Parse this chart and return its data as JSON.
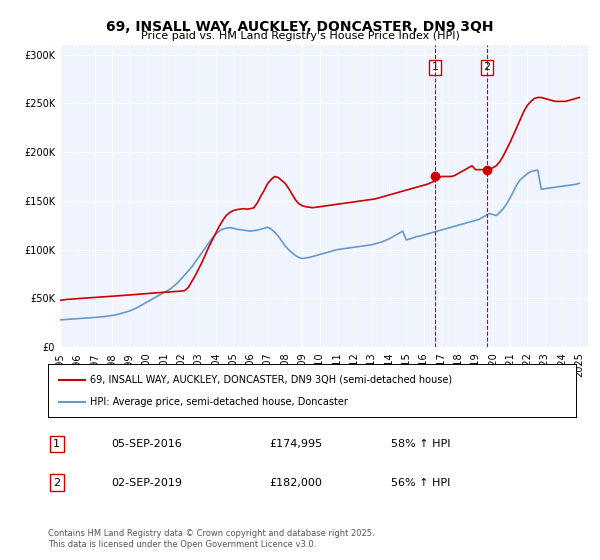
{
  "title": "69, INSALL WAY, AUCKLEY, DONCASTER, DN9 3QH",
  "subtitle": "Price paid vs. HM Land Registry's House Price Index (HPI)",
  "ylabel_ticks": [
    "£0",
    "£50K",
    "£100K",
    "£150K",
    "£200K",
    "£250K",
    "£300K"
  ],
  "ytick_values": [
    0,
    50000,
    100000,
    150000,
    200000,
    250000,
    300000
  ],
  "ylim": [
    0,
    310000
  ],
  "xlim_start": 1995.0,
  "xlim_end": 2025.5,
  "x_ticks": [
    1995,
    1996,
    1997,
    1998,
    1999,
    2000,
    2001,
    2002,
    2003,
    2004,
    2005,
    2006,
    2007,
    2008,
    2009,
    2010,
    2011,
    2012,
    2013,
    2014,
    2015,
    2016,
    2017,
    2018,
    2019,
    2020,
    2021,
    2022,
    2023,
    2024,
    2025
  ],
  "background_color": "#f0f4ff",
  "plot_bg_color": "#f0f4ff",
  "red_line_color": "#cc0000",
  "blue_line_color": "#6699cc",
  "marker_color": "#cc0000",
  "vline_color": "#cc0000",
  "legend_label_red": "69, INSALL WAY, AUCKLEY, DONCASTER, DN9 3QH (semi-detached house)",
  "legend_label_blue": "HPI: Average price, semi-detached house, Doncaster",
  "transaction1_date": "05-SEP-2016",
  "transaction1_price": "£174,995",
  "transaction1_pct": "58% ↑ HPI",
  "transaction2_date": "02-SEP-2019",
  "transaction2_price": "£182,000",
  "transaction2_pct": "56% ↑ HPI",
  "footer": "Contains HM Land Registry data © Crown copyright and database right 2025.\nThis data is licensed under the Open Government Licence v3.0.",
  "red_x": [
    1995.0,
    1995.2,
    1995.4,
    1995.6,
    1995.8,
    1996.0,
    1996.2,
    1996.4,
    1996.6,
    1996.8,
    1997.0,
    1997.2,
    1997.4,
    1997.6,
    1997.8,
    1998.0,
    1998.2,
    1998.4,
    1998.6,
    1998.8,
    1999.0,
    1999.2,
    1999.4,
    1999.6,
    1999.8,
    2000.0,
    2000.2,
    2000.4,
    2000.6,
    2000.8,
    2001.0,
    2001.2,
    2001.4,
    2001.6,
    2001.8,
    2002.0,
    2002.2,
    2002.4,
    2002.6,
    2002.8,
    2003.0,
    2003.2,
    2003.4,
    2003.6,
    2003.8,
    2004.0,
    2004.2,
    2004.4,
    2004.6,
    2004.8,
    2005.0,
    2005.2,
    2005.4,
    2005.6,
    2005.8,
    2006.0,
    2006.2,
    2006.4,
    2006.6,
    2006.8,
    2007.0,
    2007.2,
    2007.4,
    2007.6,
    2007.8,
    2008.0,
    2008.2,
    2008.4,
    2008.6,
    2008.8,
    2009.0,
    2009.2,
    2009.4,
    2009.6,
    2009.8,
    2010.0,
    2010.2,
    2010.4,
    2010.6,
    2010.8,
    2011.0,
    2011.2,
    2011.4,
    2011.6,
    2011.8,
    2012.0,
    2012.2,
    2012.4,
    2012.6,
    2012.8,
    2013.0,
    2013.2,
    2013.4,
    2013.6,
    2013.8,
    2014.0,
    2014.2,
    2014.4,
    2014.6,
    2014.8,
    2015.0,
    2015.2,
    2015.4,
    2015.6,
    2015.8,
    2016.0,
    2016.2,
    2016.4,
    2016.6,
    2016.8,
    2017.0,
    2017.2,
    2017.4,
    2017.6,
    2017.8,
    2018.0,
    2018.2,
    2018.4,
    2018.6,
    2018.8,
    2019.0,
    2019.2,
    2019.4,
    2019.6,
    2019.8,
    2020.0,
    2020.2,
    2020.4,
    2020.6,
    2020.8,
    2021.0,
    2021.2,
    2021.4,
    2021.6,
    2021.8,
    2022.0,
    2022.2,
    2022.4,
    2022.6,
    2022.8,
    2023.0,
    2023.2,
    2023.4,
    2023.6,
    2023.8,
    2024.0,
    2024.2,
    2024.4,
    2024.6,
    2024.8,
    2025.0
  ],
  "red_y": [
    48000,
    48500,
    49000,
    49200,
    49500,
    49800,
    50000,
    50200,
    50500,
    50800,
    51000,
    51200,
    51500,
    51800,
    52000,
    52200,
    52500,
    52800,
    53000,
    53200,
    53500,
    53800,
    54000,
    54500,
    54800,
    55000,
    55200,
    55500,
    55800,
    56000,
    56200,
    56500,
    56800,
    57000,
    57200,
    57500,
    58000,
    61000,
    67000,
    73000,
    80000,
    87000,
    95000,
    103000,
    110000,
    117000,
    124000,
    130000,
    135000,
    138000,
    140000,
    141000,
    141500,
    142000,
    141500,
    142000,
    143000,
    148000,
    155000,
    161000,
    168000,
    172000,
    175000,
    174000,
    171000,
    168000,
    163000,
    157000,
    151000,
    147000,
    145000,
    144000,
    143500,
    143000,
    143500,
    144000,
    144500,
    145000,
    145500,
    146000,
    146500,
    147000,
    147500,
    148000,
    148500,
    149000,
    149500,
    150000,
    150500,
    151000,
    151500,
    152000,
    153000,
    154000,
    155000,
    156000,
    157000,
    158000,
    159000,
    160000,
    161000,
    162000,
    163000,
    164000,
    165000,
    166000,
    167000,
    168500,
    170000,
    171500,
    174995,
    174995,
    174995,
    175000,
    176000,
    178000,
    180000,
    182000,
    184000,
    186000,
    182000,
    182000,
    182000,
    182000,
    182000,
    184000,
    186000,
    190000,
    196000,
    203000,
    210000,
    218000,
    226000,
    234000,
    242000,
    248000,
    252000,
    255000,
    256000,
    256000,
    255000,
    254000,
    253000,
    252000,
    252000,
    252000,
    252000,
    253000,
    254000,
    255000,
    256000
  ],
  "blue_x": [
    1995.0,
    1995.2,
    1995.4,
    1995.6,
    1995.8,
    1996.0,
    1996.2,
    1996.4,
    1996.6,
    1996.8,
    1997.0,
    1997.2,
    1997.4,
    1997.6,
    1997.8,
    1998.0,
    1998.2,
    1998.4,
    1998.6,
    1998.8,
    1999.0,
    1999.2,
    1999.4,
    1999.6,
    1999.8,
    2000.0,
    2000.2,
    2000.4,
    2000.6,
    2000.8,
    2001.0,
    2001.2,
    2001.4,
    2001.6,
    2001.8,
    2002.0,
    2002.2,
    2002.4,
    2002.6,
    2002.8,
    2003.0,
    2003.2,
    2003.4,
    2003.6,
    2003.8,
    2004.0,
    2004.2,
    2004.4,
    2004.6,
    2004.8,
    2005.0,
    2005.2,
    2005.4,
    2005.6,
    2005.8,
    2006.0,
    2006.2,
    2006.4,
    2006.6,
    2006.8,
    2007.0,
    2007.2,
    2007.4,
    2007.6,
    2007.8,
    2008.0,
    2008.2,
    2008.4,
    2008.6,
    2008.8,
    2009.0,
    2009.2,
    2009.4,
    2009.6,
    2009.8,
    2010.0,
    2010.2,
    2010.4,
    2010.6,
    2010.8,
    2011.0,
    2011.2,
    2011.4,
    2011.6,
    2011.8,
    2012.0,
    2012.2,
    2012.4,
    2012.6,
    2012.8,
    2013.0,
    2013.2,
    2013.4,
    2013.6,
    2013.8,
    2014.0,
    2014.2,
    2014.4,
    2014.6,
    2014.8,
    2015.0,
    2015.2,
    2015.4,
    2015.6,
    2015.8,
    2016.0,
    2016.2,
    2016.4,
    2016.6,
    2016.8,
    2017.0,
    2017.2,
    2017.4,
    2017.6,
    2017.8,
    2018.0,
    2018.2,
    2018.4,
    2018.6,
    2018.8,
    2019.0,
    2019.2,
    2019.4,
    2019.6,
    2019.8,
    2020.0,
    2020.2,
    2020.4,
    2020.6,
    2020.8,
    2021.0,
    2021.2,
    2021.4,
    2021.6,
    2021.8,
    2022.0,
    2022.2,
    2022.4,
    2022.6,
    2022.8,
    2023.0,
    2023.2,
    2023.4,
    2023.6,
    2023.8,
    2024.0,
    2024.2,
    2024.4,
    2024.6,
    2024.8,
    2025.0
  ],
  "blue_y": [
    28000,
    28200,
    28500,
    28800,
    29000,
    29200,
    29500,
    29800,
    30000,
    30200,
    30500,
    30800,
    31000,
    31500,
    32000,
    32500,
    33000,
    34000,
    35000,
    36000,
    37000,
    38500,
    40000,
    42000,
    44000,
    46000,
    48000,
    50000,
    52000,
    54000,
    56000,
    58000,
    60000,
    63000,
    66000,
    70000,
    74000,
    78000,
    82000,
    87000,
    92000,
    97000,
    102000,
    107000,
    112000,
    116000,
    119000,
    121000,
    122000,
    122500,
    122000,
    121000,
    120500,
    120000,
    119500,
    119000,
    119500,
    120000,
    121000,
    122000,
    123000,
    121000,
    118000,
    114000,
    109000,
    104000,
    100000,
    97000,
    94000,
    92000,
    91000,
    91500,
    92000,
    93000,
    94000,
    95000,
    96000,
    97000,
    98000,
    99000,
    100000,
    100500,
    101000,
    101500,
    102000,
    102500,
    103000,
    103500,
    104000,
    104500,
    105000,
    106000,
    107000,
    108000,
    109500,
    111000,
    113000,
    115000,
    117000,
    119000,
    110000,
    111000,
    112000,
    113500,
    114000,
    115000,
    116000,
    117000,
    118000,
    119000,
    120000,
    121000,
    122000,
    123000,
    124000,
    125000,
    126000,
    127000,
    128000,
    129000,
    130000,
    131000,
    133000,
    135000,
    137000,
    136000,
    135000,
    138000,
    142000,
    147000,
    153000,
    160000,
    167000,
    172000,
    175000,
    178000,
    180000,
    181000,
    181500,
    162000,
    162500,
    163000,
    163500,
    164000,
    164500,
    165000,
    165500,
    166000,
    166500,
    167000,
    168000
  ],
  "marker1_x": 2016.67,
  "marker1_y": 174995,
  "marker2_x": 2019.67,
  "marker2_y": 182000,
  "vline1_x": 2016.67,
  "vline2_x": 2019.67
}
